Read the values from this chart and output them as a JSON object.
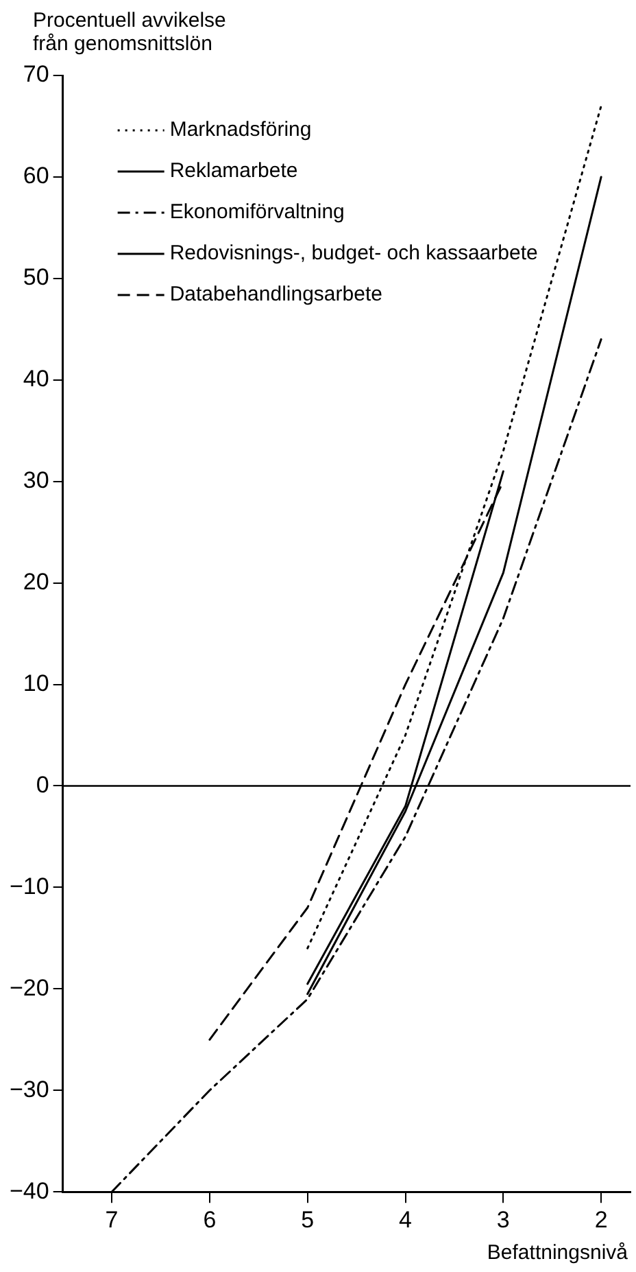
{
  "chart_data": {
    "type": "line",
    "ylabel": "Procentuell avvikelse från genomsnittslön",
    "xlabel": "Befattningsnivå",
    "xlim": [
      7.5,
      1.7
    ],
    "xticks": [
      7,
      6,
      5,
      4,
      3,
      2
    ],
    "ylim": [
      -40,
      70
    ],
    "yticks": [
      70,
      60,
      50,
      40,
      30,
      20,
      10,
      0,
      -10,
      -20,
      -30,
      -40
    ],
    "grid": false,
    "legend": "top left",
    "marker": "none",
    "ref_lines": [
      {
        "axis": "y",
        "value": 0,
        "color": "#000000",
        "line_style": "solid"
      }
    ],
    "series": [
      {
        "name": "Marknadsföring",
        "color": "#000000",
        "line_style": "dotted",
        "x": [
          5,
          4,
          3,
          2
        ],
        "values": [
          -16,
          5,
          33,
          67
        ]
      },
      {
        "name": "Reklamarbete",
        "color": "#000000",
        "line_style": "solid",
        "x": [
          5,
          4,
          3
        ],
        "values": [
          -19.5,
          -2,
          31
        ]
      },
      {
        "name": "Ekonomiförvaltning",
        "color": "#000000",
        "line_style": "dashdot",
        "x": [
          7,
          6,
          5,
          4,
          3,
          2
        ],
        "values": [
          -40,
          -30,
          -21,
          -5,
          16.5,
          44
        ]
      },
      {
        "name": "Redovisnings-, budget- och kassaarbete",
        "color": "#000000",
        "line_style": "solid",
        "x": [
          5,
          4,
          3,
          2
        ],
        "values": [
          -20.5,
          -2.5,
          21,
          60
        ]
      },
      {
        "name": "Databehandlingsarbete",
        "color": "#000000",
        "line_style": "dashed",
        "x": [
          6,
          5,
          4,
          3
        ],
        "values": [
          -25,
          -12,
          10,
          30
        ]
      }
    ]
  }
}
